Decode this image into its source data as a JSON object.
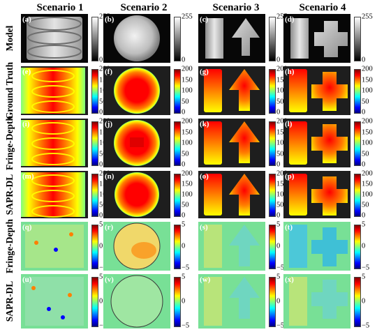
{
  "columns": [
    "Scenario 1",
    "Scenario 2",
    "Scenario 3",
    "Scenario 4"
  ],
  "rows": [
    {
      "label": "Model",
      "type": "model",
      "ticks": [
        "255",
        "0"
      ],
      "panels": [
        "(a)",
        "(b)",
        "(c)",
        "(d)"
      ]
    },
    {
      "label": "Ground Truth",
      "type": "depth",
      "ticks": [
        "200",
        "150",
        "100",
        "50",
        "0"
      ],
      "panels": [
        "(e)",
        "(f)",
        "(g)",
        "(h)"
      ]
    },
    {
      "label": "Fringe-Depth",
      "type": "depth",
      "ticks": [
        "200",
        "150",
        "100",
        "50",
        "0"
      ],
      "panels": [
        "(i)",
        "(j)",
        "(k)",
        "(l)"
      ]
    },
    {
      "label": "SAPR-DL",
      "type": "depth",
      "ticks": [
        "200",
        "150",
        "100",
        "50",
        "0"
      ],
      "panels": [
        "(m)",
        "(n)",
        "(o)",
        "(p)"
      ]
    },
    {
      "label": "Fringe-Depth",
      "type": "error",
      "ticks": [
        "5",
        "0",
        "−5"
      ],
      "panels": [
        "(q)",
        "(r)",
        "(s)",
        "(t)"
      ]
    },
    {
      "label": "SAPR-DL",
      "type": "error",
      "ticks": [
        "5",
        "0",
        "−5"
      ],
      "panels": [
        "(u)",
        "(v)",
        "(w)",
        "(x)"
      ]
    }
  ],
  "colors": {
    "jet": [
      "#00007f",
      "#0000ff",
      "#007fff",
      "#00ffff",
      "#7fff7f",
      "#ffff00",
      "#ff7f00",
      "#ff0000",
      "#7f0000"
    ],
    "background_dark": "#1e1e1e",
    "error_background": "#78e096"
  }
}
